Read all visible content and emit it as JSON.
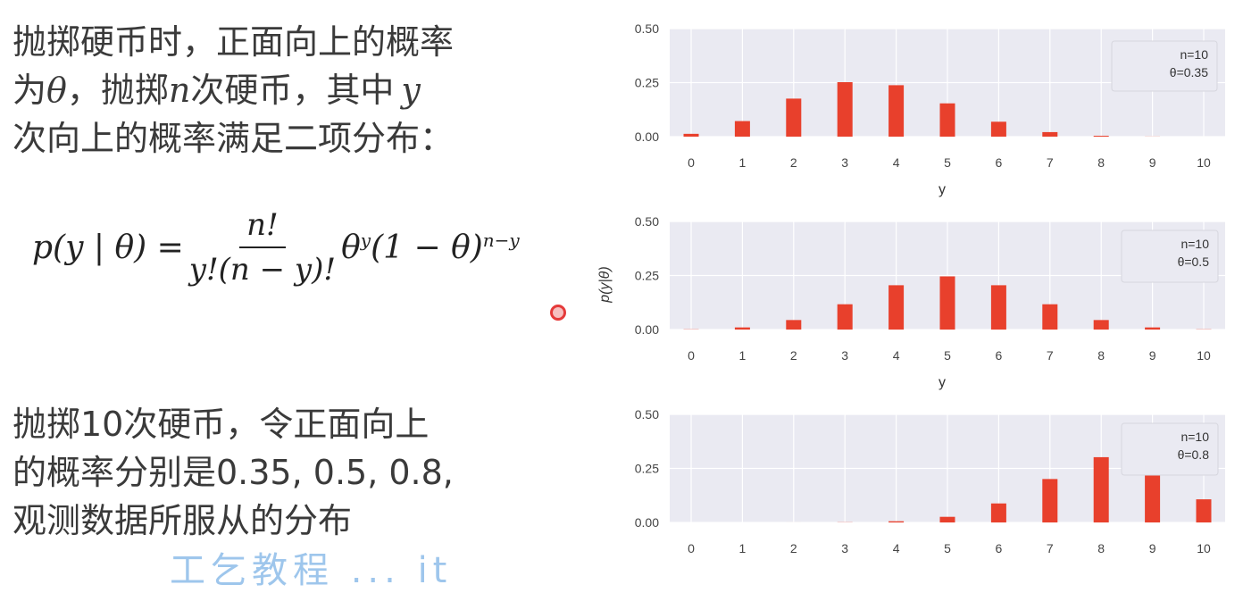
{
  "text": {
    "para1_line1": "抛掷硬币时，正面向上的概率",
    "para1_line2a": "为",
    "para1_theta": "θ",
    "para1_line2b": "，抛掷",
    "para1_n": "n",
    "para1_line2c": "次硬币，其中",
    "para1_y": "y",
    "para1_line3": "次向上的概率满足二项分布：",
    "formula_lhs": "p(y | θ) =",
    "formula_num": "n!",
    "formula_den": "y!(n − y)!",
    "formula_theta": "θ",
    "formula_exp1": "y",
    "formula_mid": "(1 − θ)",
    "formula_exp2": "n−y",
    "para2_line1": "抛掷10次硬币，令正面向上",
    "para2_line2": "的概率分别是0.35, 0.5, 0.8,",
    "para2_line3": "观测数据所服从的分布",
    "watermark": "工乞教程 ... it"
  },
  "colors": {
    "bar": "#e8402c",
    "panel_bg": "#eaeaf2",
    "grid": "#ffffff"
  },
  "chart_data": [
    {
      "type": "bar",
      "categories": [
        "0",
        "1",
        "2",
        "3",
        "4",
        "5",
        "6",
        "7",
        "8",
        "9",
        "10"
      ],
      "values": [
        0.013,
        0.072,
        0.176,
        0.252,
        0.238,
        0.154,
        0.069,
        0.021,
        0.004,
        0.0005,
        3e-05
      ],
      "xlabel": "y",
      "ylabel": "",
      "yticks": [
        "0.00",
        "0.25",
        "0.50"
      ],
      "ylim": [
        0,
        0.5
      ],
      "legend": [
        "n=10",
        "θ=0.35"
      ],
      "legend_position": "top-right",
      "grid": true
    },
    {
      "type": "bar",
      "categories": [
        "0",
        "1",
        "2",
        "3",
        "4",
        "5",
        "6",
        "7",
        "8",
        "9",
        "10"
      ],
      "values": [
        0.001,
        0.0098,
        0.044,
        0.117,
        0.205,
        0.246,
        0.205,
        0.117,
        0.044,
        0.0098,
        0.001
      ],
      "xlabel": "y",
      "ylabel": "p(y|θ)",
      "yticks": [
        "0.00",
        "0.25",
        "0.50"
      ],
      "ylim": [
        0,
        0.5
      ],
      "legend": [
        "n=10",
        "θ=0.5"
      ],
      "legend_position": "top-right",
      "grid": true
    },
    {
      "type": "bar",
      "categories": [
        "0",
        "1",
        "2",
        "3",
        "4",
        "5",
        "6",
        "7",
        "8",
        "9",
        "10"
      ],
      "values": [
        1e-07,
        4e-06,
        7e-05,
        0.0008,
        0.0055,
        0.026,
        0.088,
        0.201,
        0.302,
        0.268,
        0.107
      ],
      "xlabel": "",
      "ylabel": "",
      "yticks": [
        "0.00",
        "0.25",
        "0.50"
      ],
      "ylim": [
        0,
        0.5
      ],
      "legend": [
        "n=10",
        "θ=0.8"
      ],
      "legend_position": "top-right",
      "grid": true
    }
  ]
}
